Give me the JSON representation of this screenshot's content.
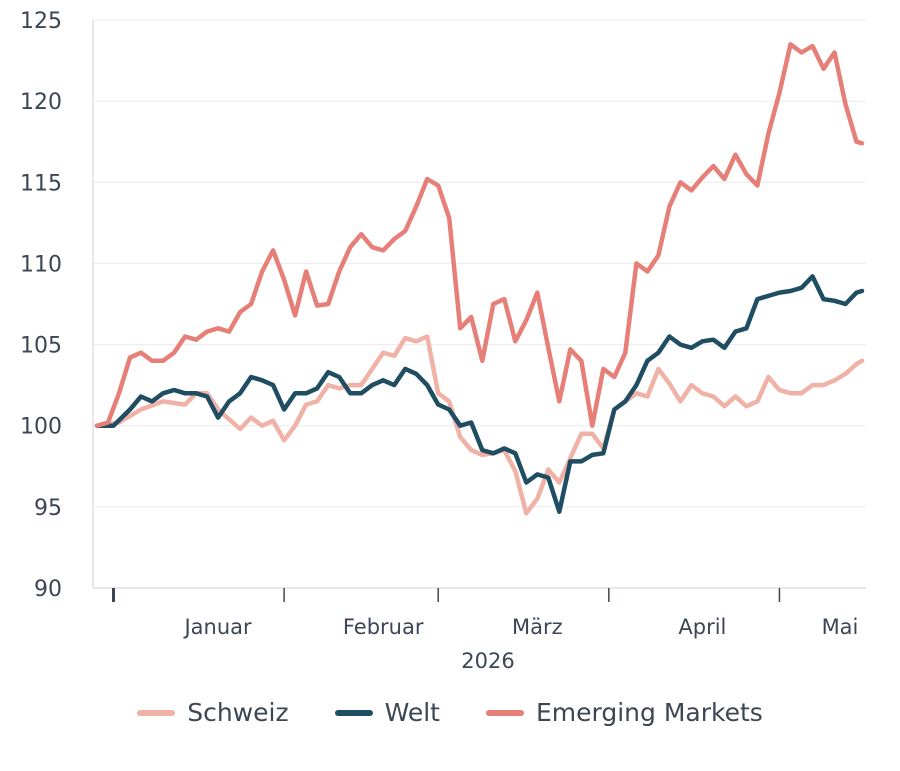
{
  "chart_data": {
    "type": "line",
    "title": "",
    "xlabel": "2026",
    "ylabel": "",
    "ylim": [
      90,
      125
    ],
    "yticks": [
      90,
      95,
      100,
      105,
      110,
      115,
      120,
      125
    ],
    "xlim": [
      0,
      139
    ],
    "x_ticks": [
      {
        "label": "Januar",
        "at": 22
      },
      {
        "label": "Februar",
        "at": 52
      },
      {
        "label": "März",
        "at": 80
      },
      {
        "label": "April",
        "at": 110
      },
      {
        "label": "Mai",
        "at": 135
      }
    ],
    "x_tick_marks": [
      3,
      34,
      62,
      93,
      124
    ],
    "grid": "horizontal",
    "legend_position": "bottom",
    "series": [
      {
        "name": "Schweiz",
        "color": "#f0b1a6",
        "x": [
          0,
          4,
          8,
          12,
          16,
          18,
          20,
          22,
          26,
          28,
          30,
          32,
          34,
          36,
          38,
          40,
          42,
          44,
          46,
          48,
          50,
          52,
          54,
          56,
          58,
          60,
          62,
          64,
          66,
          68,
          70,
          72,
          74,
          76,
          78,
          80,
          82,
          84,
          86,
          88,
          90,
          92,
          94,
          96,
          98,
          100,
          102,
          104,
          106,
          108,
          110,
          112,
          114,
          116,
          118,
          120,
          122,
          124,
          126,
          128,
          130,
          132,
          134,
          136,
          138,
          139
        ],
        "values": [
          100,
          100.2,
          101,
          101.5,
          101.3,
          102,
          102,
          101,
          99.8,
          100.5,
          100,
          100.3,
          99.1,
          100,
          101.3,
          101.5,
          102.5,
          102.3,
          102.5,
          102.5,
          103.5,
          104.5,
          104.3,
          105.4,
          105.2,
          105.5,
          102,
          101.5,
          99.3,
          98.5,
          98.2,
          98.3,
          98.5,
          97.2,
          94.6,
          95.5,
          97.3,
          96.5,
          98,
          99.5,
          99.5,
          98.6,
          101,
          101.5,
          102,
          101.8,
          103.5,
          102.6,
          101.5,
          102.5,
          102,
          101.8,
          101.2,
          101.8,
          101.2,
          101.5,
          103,
          102.2,
          102,
          102,
          102.5,
          102.5,
          102.8,
          103.2,
          103.8,
          104
        ]
      },
      {
        "name": "Welt",
        "color": "#1f4e63",
        "x": [
          0,
          3,
          6,
          8,
          10,
          12,
          14,
          16,
          18,
          20,
          22,
          24,
          26,
          28,
          30,
          32,
          34,
          36,
          38,
          40,
          42,
          44,
          46,
          48,
          50,
          52,
          54,
          56,
          58,
          60,
          62,
          64,
          66,
          68,
          70,
          72,
          74,
          76,
          78,
          80,
          82,
          84,
          86,
          88,
          90,
          92,
          94,
          96,
          98,
          100,
          102,
          104,
          106,
          108,
          110,
          112,
          114,
          116,
          118,
          120,
          122,
          124,
          126,
          128,
          130,
          132,
          134,
          136,
          138,
          139
        ],
        "values": [
          100,
          100,
          101,
          101.8,
          101.5,
          102,
          102.2,
          102,
          102,
          101.8,
          100.5,
          101.5,
          102,
          103,
          102.8,
          102.5,
          101,
          102,
          102,
          102.3,
          103.3,
          103,
          102,
          102,
          102.5,
          102.8,
          102.5,
          103.5,
          103.2,
          102.5,
          101.3,
          101,
          100,
          100.2,
          98.5,
          98.3,
          98.6,
          98.3,
          96.5,
          97,
          96.8,
          94.7,
          97.8,
          97.8,
          98.2,
          98.3,
          101,
          101.5,
          102.5,
          104,
          104.5,
          105.5,
          105,
          104.8,
          105.2,
          105.3,
          104.8,
          105.8,
          106,
          107.8,
          108,
          108.2,
          108.3,
          108.5,
          109.2,
          107.8,
          107.7,
          107.5,
          108.2,
          108.3
        ]
      },
      {
        "name": "Emerging Markets",
        "color": "#e77f79",
        "x": [
          0,
          2,
          4,
          6,
          8,
          10,
          12,
          14,
          16,
          18,
          20,
          22,
          24,
          26,
          28,
          30,
          32,
          34,
          36,
          38,
          40,
          42,
          44,
          46,
          48,
          50,
          52,
          54,
          56,
          58,
          60,
          62,
          64,
          66,
          68,
          70,
          72,
          74,
          76,
          78,
          80,
          82,
          84,
          86,
          88,
          90,
          92,
          94,
          96,
          98,
          100,
          102,
          104,
          106,
          108,
          110,
          112,
          114,
          116,
          118,
          120,
          122,
          124,
          126,
          128,
          130,
          132,
          134,
          136,
          138,
          139
        ],
        "values": [
          100,
          100.2,
          102,
          104.2,
          104.5,
          104,
          104,
          104.5,
          105.5,
          105.3,
          105.8,
          106,
          105.8,
          107,
          107.5,
          109.5,
          110.8,
          109,
          106.8,
          109.5,
          107.4,
          107.5,
          109.5,
          111,
          111.8,
          111,
          110.8,
          111.5,
          112,
          113.5,
          115.2,
          114.8,
          112.8,
          106,
          106.7,
          104,
          107.5,
          107.8,
          105.2,
          106.5,
          108.2,
          104.8,
          101.5,
          104.7,
          104,
          100,
          103.5,
          103,
          104.5,
          110,
          109.5,
          110.5,
          113.5,
          115,
          114.5,
          115.3,
          116,
          115.2,
          116.7,
          115.5,
          114.8,
          118,
          120.5,
          123.5,
          123,
          123.4,
          122,
          123,
          119.8,
          117.5,
          117.4
        ]
      }
    ]
  }
}
